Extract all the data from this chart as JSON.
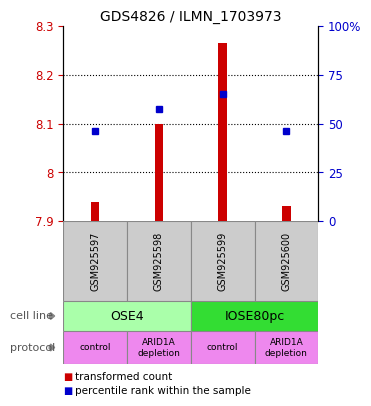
{
  "title": "GDS4826 / ILMN_1703973",
  "samples": [
    "GSM925597",
    "GSM925598",
    "GSM925599",
    "GSM925600"
  ],
  "bar_values": [
    7.94,
    8.1,
    8.265,
    7.93
  ],
  "bar_bottom": 7.9,
  "blue_values": [
    8.085,
    8.13,
    8.16,
    8.085
  ],
  "ylim": [
    7.9,
    8.3
  ],
  "y_ticks": [
    7.9,
    8.0,
    8.1,
    8.2,
    8.3
  ],
  "y_tick_labels": [
    "7.9",
    "8",
    "8.1",
    "8.2",
    "8.3"
  ],
  "y2_ticks": [
    0,
    25,
    50,
    75,
    100
  ],
  "y2_tick_labels": [
    "0",
    "25",
    "50",
    "75",
    "100%"
  ],
  "cell_line_groups": [
    {
      "start": 0,
      "end": 2,
      "label": "OSE4",
      "color": "#aaffaa"
    },
    {
      "start": 2,
      "end": 4,
      "label": "IOSE80pc",
      "color": "#33dd33"
    }
  ],
  "protocol_labels": [
    "control",
    "ARID1A\ndepletion",
    "control",
    "ARID1A\ndepletion"
  ],
  "protocol_color": "#ee88ee",
  "sample_box_color": "#cccccc",
  "bar_color": "#cc0000",
  "blue_color": "#0000cc",
  "legend_red_label": "transformed count",
  "legend_blue_label": "percentile rank within the sample",
  "label_color_left": "#cc0000",
  "label_color_right": "#0000cc",
  "dotted_lines": [
    8.0,
    8.1,
    8.2
  ]
}
